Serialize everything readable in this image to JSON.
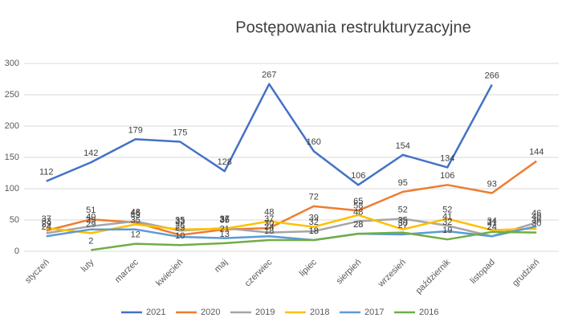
{
  "chart_data": {
    "type": "line",
    "title": "Postępowania restrukturyzacyjne",
    "categories": [
      "styczeń",
      "luty",
      "marzec",
      "kwiecień",
      "maj",
      "czerwiec",
      "lipiec",
      "sierpień",
      "wrzesień",
      "październik",
      "listopad",
      "grudzień"
    ],
    "ylim": [
      0,
      300
    ],
    "yticks": [
      0,
      50,
      100,
      150,
      200,
      250,
      300
    ],
    "grid": true,
    "series": [
      {
        "name": "2021",
        "color": "#4472c4",
        "values": [
          112,
          142,
          179,
          175,
          128,
          267,
          160,
          106,
          154,
          134,
          266,
          null
        ]
      },
      {
        "name": "2020",
        "color": "#ed7d31",
        "values": [
          33,
          51,
          46,
          26,
          35,
          37,
          72,
          65,
          95,
          106,
          93,
          144
        ]
      },
      {
        "name": "2019",
        "color": "#a5a5a5",
        "values": [
          29,
          40,
          48,
          33,
          37,
          30,
          32,
          48,
          52,
          41,
          24,
          46
        ]
      },
      {
        "name": "2018",
        "color": "#ffc000",
        "values": [
          37,
          29,
          43,
          35,
          36,
          48,
          39,
          58,
          35,
          52,
          34,
          36
        ]
      },
      {
        "name": "2017",
        "color": "#5b9bd5",
        "values": [
          24,
          35,
          35,
          23,
          21,
          24,
          18,
          28,
          27,
          32,
          24,
          40
        ]
      },
      {
        "name": "2016",
        "color": "#70ad47",
        "values": [
          null,
          2,
          12,
          10,
          13,
          18,
          18,
          28,
          30,
          19,
          31,
          30
        ]
      }
    ]
  }
}
